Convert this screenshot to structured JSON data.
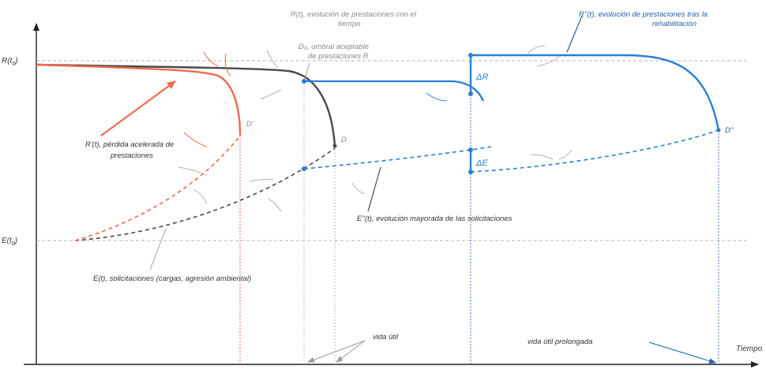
{
  "axis": {
    "y_top_label": "R(t",
    "y_top_sub": "0",
    "y_top_close": ")",
    "y_bottom_label": "E(t",
    "y_bottom_sub": "0",
    "y_bottom_close": ")",
    "x_label": "Tiempo"
  },
  "labels": {
    "r_evolution_1": "R(t), evolución de prestaciones con el",
    "r_evolution_2": "tiempo",
    "threshold_1": "D₀, umbral aceptable",
    "threshold_2": "de prestaciones R",
    "r_rehab_1": "R''(t), evolución de prestaciones tras la",
    "r_rehab_2": "rehabilitación",
    "r_accelerated_1": "R'(t), pérdida acelerada de",
    "r_accelerated_2": "prestaciones",
    "d_prime": "D'",
    "d": "D",
    "d_double": "D''",
    "delta_r": "ΔR",
    "delta_e": "ΔE",
    "e_increased": "E''(t), evolución mayorada de las solicitaciones",
    "e_loads": "E(t), solicitaciones (cargas, agresión ambiental)",
    "service_life": "vida útil",
    "service_life_extended": "vida útil prolongada"
  },
  "colors": {
    "accelerated": "#ee6b4d",
    "original": "#4a4a4a",
    "rehabilitated": "#2a7fd4",
    "reference_line": "#b5b5b5",
    "axis": "#222222"
  }
}
